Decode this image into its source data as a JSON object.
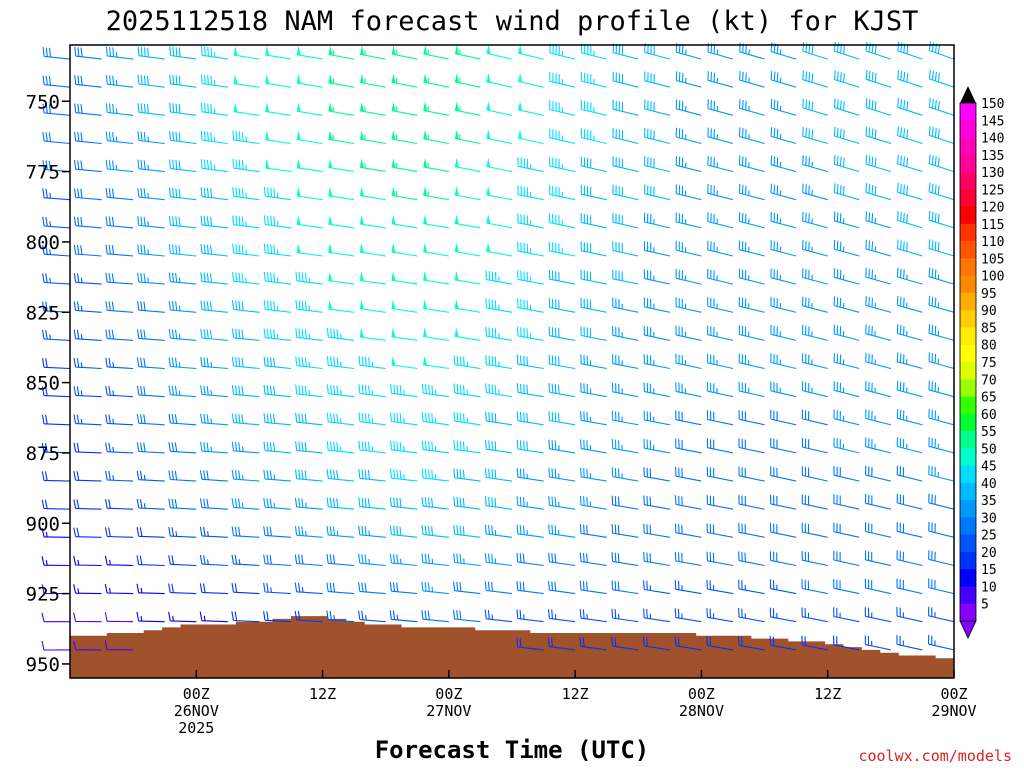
{
  "chart_data": {
    "type": "wind-barb-time-height",
    "title": "2025112518 NAM forecast wind profile (kt) for KJST",
    "xlabel": "Forecast Time (UTC)",
    "ylabel": "",
    "credit": "coolwx.com/models",
    "y_axis": {
      "unit": "hPa",
      "range": [
        955,
        730
      ],
      "ticks": [
        "750",
        "775",
        "800",
        "825",
        "850",
        "875",
        "900",
        "925",
        "950"
      ]
    },
    "x_axis": {
      "unit": "forecast hour",
      "range": [
        -6,
        78
      ],
      "ticks": [
        {
          "hour": 6,
          "line1": "00Z",
          "line2": "26NOV",
          "line3": "2025"
        },
        {
          "hour": 18,
          "line1": "12Z",
          "line2": "",
          "line3": ""
        },
        {
          "hour": 30,
          "line1": "00Z",
          "line2": "27NOV",
          "line3": ""
        },
        {
          "hour": 42,
          "line1": "12Z",
          "line2": "",
          "line3": ""
        },
        {
          "hour": 54,
          "line1": "00Z",
          "line2": "28NOV",
          "line3": ""
        },
        {
          "hour": 66,
          "line1": "12Z",
          "line2": "",
          "line3": ""
        },
        {
          "hour": 78,
          "line1": "00Z",
          "line2": "29NOV",
          "line3": ""
        }
      ]
    },
    "colorbar": {
      "levels": [
        "150",
        "145",
        "140",
        "135",
        "130",
        "125",
        "120",
        "115",
        "110",
        "105",
        "100",
        "95",
        "90",
        "85",
        "80",
        "75",
        "70",
        "65",
        "60",
        "55",
        "50",
        "45",
        "40",
        "35",
        "30",
        "25",
        "20",
        "15",
        "10",
        "5"
      ],
      "colors": [
        "#ff00ff",
        "#ff00dd",
        "#ff00bb",
        "#ff0099",
        "#ff0066",
        "#ff0033",
        "#ff0000",
        "#ff3300",
        "#ff5500",
        "#ff7700",
        "#ff8800",
        "#ffaa00",
        "#ffcc00",
        "#ffee00",
        "#ffff00",
        "#ddff00",
        "#99ff00",
        "#33ff00",
        "#00ff33",
        "#00ff88",
        "#00ffcc",
        "#00ddff",
        "#00bbff",
        "#0099ff",
        "#0077ff",
        "#0055ff",
        "#0033ff",
        "#0000ff",
        "#4400ff",
        "#8800ff"
      ],
      "top_arrow_color": "#000000",
      "bottom_arrow_color": "#8800ff"
    },
    "terrain": {
      "color": "#a0522d",
      "surface_pressure_hpa": [
        940,
        940,
        939,
        939,
        938,
        937,
        936,
        936,
        936,
        935,
        935,
        934,
        933,
        933,
        934,
        935,
        936,
        936,
        937,
        937,
        937,
        937,
        938,
        938,
        938,
        939,
        939,
        939,
        939,
        939,
        939,
        939,
        939,
        939,
        940,
        940,
        940,
        941,
        941,
        942,
        942,
        943,
        944,
        945,
        946,
        947,
        947,
        948
      ],
      "start_hour": -6,
      "step_hours": 1.75
    },
    "wind": {
      "levels_hpa": [
        735,
        745,
        755,
        765,
        775,
        785,
        795,
        805,
        815,
        825,
        835,
        845,
        855,
        865,
        875,
        885,
        895,
        905,
        915,
        925,
        935,
        945
      ],
      "times_h": [
        -6,
        -3,
        0,
        3,
        6,
        9,
        12,
        15,
        18,
        21,
        24,
        27,
        30,
        33,
        36,
        39,
        42,
        45,
        48,
        51,
        54,
        57,
        60,
        63,
        66,
        69,
        72,
        75,
        78
      ],
      "direction_deg": {
        "base": 275,
        "notes": "westerly to west-northwesterly flow, veering slightly with time"
      },
      "speed_kt_by_level": {
        "735": [
          30,
          32,
          34,
          38,
          42,
          45,
          48,
          50,
          52,
          53,
          54,
          55,
          55,
          53,
          50,
          48,
          45,
          43,
          40,
          38,
          37,
          36,
          36,
          37,
          38,
          39,
          40,
          40,
          40
        ],
        "755": [
          30,
          32,
          34,
          38,
          42,
          45,
          48,
          50,
          52,
          53,
          54,
          55,
          55,
          53,
          50,
          48,
          45,
          43,
          40,
          38,
          37,
          36,
          36,
          37,
          38,
          39,
          40,
          40,
          40
        ],
        "775": [
          28,
          30,
          33,
          36,
          40,
          43,
          46,
          48,
          50,
          52,
          53,
          54,
          54,
          52,
          50,
          47,
          44,
          42,
          40,
          38,
          37,
          36,
          36,
          36,
          37,
          38,
          38,
          39,
          39
        ],
        "800": [
          26,
          28,
          31,
          34,
          38,
          41,
          44,
          46,
          48,
          50,
          51,
          52,
          52,
          51,
          48,
          46,
          43,
          41,
          39,
          37,
          36,
          35,
          35,
          35,
          36,
          37,
          37,
          38,
          38
        ],
        "825": [
          24,
          26,
          29,
          32,
          36,
          39,
          42,
          44,
          46,
          48,
          49,
          50,
          50,
          49,
          46,
          44,
          41,
          39,
          37,
          36,
          35,
          34,
          34,
          34,
          35,
          35,
          36,
          36,
          37
        ],
        "850": [
          22,
          24,
          27,
          30,
          33,
          36,
          39,
          41,
          43,
          45,
          46,
          47,
          47,
          46,
          43,
          41,
          39,
          37,
          35,
          34,
          33,
          33,
          33,
          33,
          33,
          34,
          34,
          35,
          35
        ],
        "875": [
          20,
          22,
          25,
          28,
          31,
          34,
          37,
          39,
          41,
          43,
          44,
          45,
          45,
          44,
          41,
          39,
          37,
          35,
          34,
          33,
          32,
          32,
          32,
          32,
          32,
          33,
          33,
          33,
          34
        ],
        "900": [
          17,
          19,
          21,
          24,
          27,
          29,
          32,
          34,
          36,
          38,
          39,
          40,
          40,
          39,
          37,
          35,
          34,
          32,
          31,
          30,
          30,
          30,
          30,
          30,
          30,
          31,
          31,
          31,
          32
        ],
        "925": [
          12,
          13,
          14,
          16,
          18,
          20,
          22,
          24,
          26,
          28,
          30,
          32,
          33,
          32,
          31,
          30,
          29,
          28,
          28,
          27,
          27,
          27,
          27,
          27,
          28,
          28,
          29,
          29,
          30
        ],
        "945": [
          8,
          9,
          10,
          10,
          11,
          12,
          13,
          14,
          16,
          18,
          20,
          22,
          23,
          23,
          22,
          21,
          21,
          20,
          20,
          20,
          20,
          20,
          21,
          21,
          22,
          22,
          23,
          23,
          24
        ]
      }
    }
  }
}
